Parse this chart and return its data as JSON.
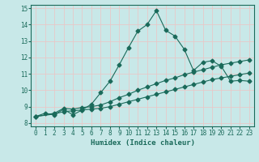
{
  "title": "",
  "xlabel": "Humidex (Indice chaleur)",
  "ylabel": "",
  "bg_color": "#c8e8e8",
  "grid_color": "#e8c8c8",
  "line_color": "#1a6a5a",
  "xlim": [
    -0.5,
    23.5
  ],
  "ylim": [
    7.8,
    15.2
  ],
  "xticks": [
    0,
    1,
    2,
    3,
    4,
    5,
    6,
    7,
    8,
    9,
    10,
    11,
    12,
    13,
    14,
    15,
    16,
    17,
    18,
    19,
    20,
    21,
    22,
    23
  ],
  "yticks": [
    8,
    9,
    10,
    11,
    12,
    13,
    14,
    15
  ],
  "line1_x": [
    0,
    1,
    2,
    3,
    4,
    5,
    6,
    7,
    8,
    9,
    10,
    11,
    12,
    13,
    14,
    15,
    16,
    17,
    18,
    19,
    20,
    21,
    22,
    23
  ],
  "line1_y": [
    8.4,
    8.6,
    8.5,
    8.85,
    8.5,
    8.8,
    9.15,
    9.85,
    10.55,
    11.55,
    12.6,
    13.6,
    14.0,
    14.85,
    13.65,
    13.3,
    12.5,
    11.2,
    11.7,
    11.8,
    11.45,
    10.55,
    10.6,
    10.55
  ],
  "line2_x": [
    0,
    2,
    3,
    4,
    5,
    6,
    7,
    8,
    9,
    10,
    11,
    12,
    13,
    14,
    15,
    16,
    17,
    18,
    19,
    20,
    21,
    22,
    23
  ],
  "line2_y": [
    8.4,
    8.6,
    8.9,
    8.85,
    8.95,
    9.0,
    9.1,
    9.3,
    9.55,
    9.75,
    10.0,
    10.2,
    10.4,
    10.6,
    10.75,
    10.95,
    11.1,
    11.25,
    11.4,
    11.55,
    11.65,
    11.75,
    11.85
  ],
  "line3_x": [
    0,
    2,
    3,
    4,
    5,
    6,
    7,
    8,
    9,
    10,
    11,
    12,
    13,
    14,
    15,
    16,
    17,
    18,
    19,
    20,
    21,
    22,
    23
  ],
  "line3_y": [
    8.4,
    8.55,
    8.7,
    8.75,
    8.8,
    8.85,
    8.9,
    9.0,
    9.15,
    9.3,
    9.45,
    9.6,
    9.75,
    9.9,
    10.05,
    10.2,
    10.35,
    10.5,
    10.65,
    10.75,
    10.85,
    10.95,
    11.05
  ]
}
